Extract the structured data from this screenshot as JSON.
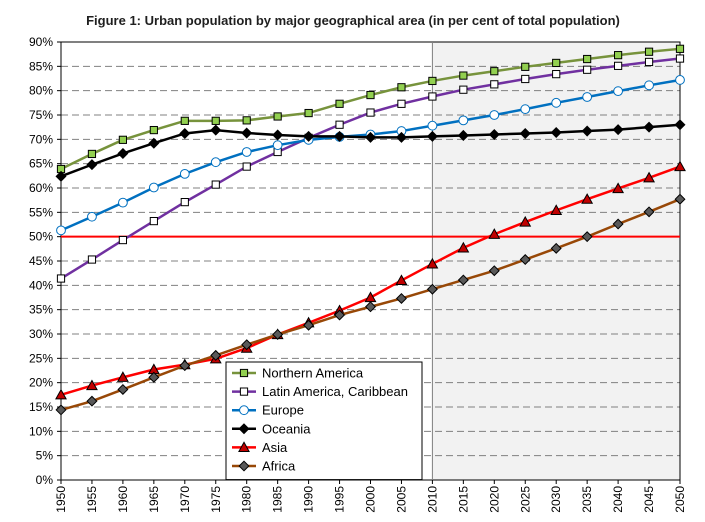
{
  "chart_data": {
    "type": "line",
    "title": "Figure 1: Urban population by major geographical area (in per cent of total population)",
    "x": [
      1950,
      1955,
      1960,
      1965,
      1970,
      1975,
      1980,
      1985,
      1990,
      1995,
      2000,
      2005,
      2010,
      2015,
      2020,
      2025,
      2030,
      2035,
      2040,
      2045,
      2050
    ],
    "ylim": [
      0,
      90
    ],
    "yticks": [
      0,
      5,
      10,
      15,
      20,
      25,
      30,
      35,
      40,
      45,
      50,
      55,
      60,
      65,
      70,
      75,
      80,
      85,
      90
    ],
    "ytick_labels": [
      "0%",
      "5%",
      "10%",
      "15%",
      "20%",
      "25%",
      "30%",
      "35%",
      "40%",
      "45%",
      "50%",
      "55%",
      "60%",
      "65%",
      "70%",
      "75%",
      "80%",
      "85%",
      "90%"
    ],
    "xtick_labels": [
      "1950",
      "1955",
      "1960",
      "1965",
      "1970",
      "1975",
      "1980",
      "1985",
      "1990",
      "1995",
      "2000",
      "2005",
      "2010",
      "2015",
      "2020",
      "2025",
      "2030",
      "2035",
      "2040",
      "2045",
      "2050"
    ],
    "grid": true,
    "reference_line": 50,
    "projection_from": 2010,
    "legend_position": "lower-center",
    "series": [
      {
        "name": "Northern America",
        "color": "#77933c",
        "marker": "square",
        "marker_fill": "#92d050",
        "values": [
          63.9,
          67.0,
          69.9,
          71.9,
          73.8,
          73.8,
          73.9,
          74.7,
          75.4,
          77.3,
          79.1,
          80.7,
          82.0,
          83.1,
          84.0,
          84.9,
          85.7,
          86.5,
          87.3,
          88.0,
          88.6
        ]
      },
      {
        "name": "Latin America, Caribbean",
        "color": "#7030a0",
        "marker": "square",
        "marker_fill": "#ffffff",
        "values": [
          41.4,
          45.3,
          49.3,
          53.2,
          57.1,
          60.7,
          64.4,
          67.4,
          70.3,
          73.0,
          75.5,
          77.3,
          78.8,
          80.2,
          81.3,
          82.4,
          83.4,
          84.3,
          85.1,
          85.9,
          86.6
        ]
      },
      {
        "name": "Europe",
        "color": "#0070c0",
        "marker": "circle",
        "marker_fill": "#ffffff",
        "values": [
          51.3,
          54.1,
          57.0,
          60.1,
          62.9,
          65.3,
          67.4,
          68.8,
          69.9,
          70.5,
          71.0,
          71.7,
          72.8,
          73.9,
          75.0,
          76.2,
          77.5,
          78.7,
          79.9,
          81.1,
          82.2
        ]
      },
      {
        "name": "Oceania",
        "color": "#000000",
        "marker": "diamond",
        "marker_fill": "#000000",
        "values": [
          62.4,
          64.8,
          67.1,
          69.2,
          71.2,
          71.9,
          71.3,
          70.9,
          70.6,
          70.6,
          70.4,
          70.4,
          70.6,
          70.8,
          71.0,
          71.2,
          71.4,
          71.7,
          72.0,
          72.5,
          73.0
        ]
      },
      {
        "name": "Asia",
        "color": "#ff0000",
        "marker": "triangle",
        "marker_fill": "#c00000",
        "values": [
          17.5,
          19.4,
          21.1,
          22.7,
          23.7,
          24.9,
          27.1,
          29.9,
          32.3,
          34.8,
          37.5,
          41.0,
          44.4,
          47.7,
          50.5,
          53.0,
          55.4,
          57.7,
          59.9,
          62.1,
          64.4
        ]
      },
      {
        "name": "Africa",
        "color": "#984807",
        "marker": "diamond",
        "marker_fill": "#595959",
        "values": [
          14.4,
          16.2,
          18.6,
          21.1,
          23.5,
          25.6,
          27.8,
          29.9,
          31.8,
          33.9,
          35.6,
          37.3,
          39.2,
          41.1,
          43.0,
          45.3,
          47.6,
          50.0,
          52.6,
          55.1,
          57.7
        ]
      }
    ]
  }
}
